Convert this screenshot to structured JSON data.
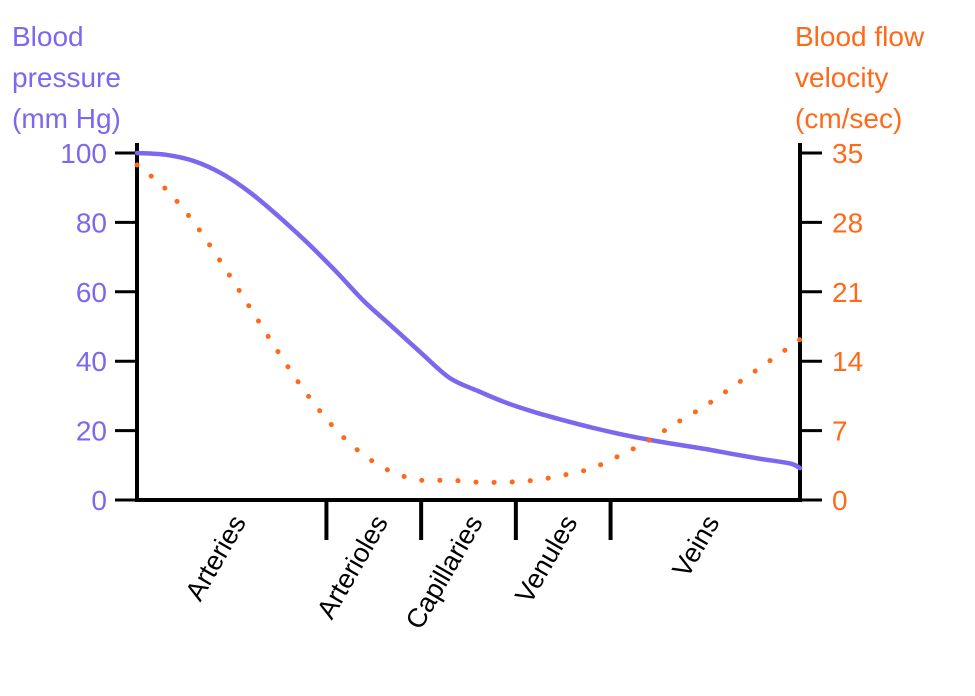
{
  "colors": {
    "pressure": "#7b68ee",
    "velocity": "#ff6a1a",
    "axis": "#000000"
  },
  "left_axis_label": [
    "Blood",
    "pressure",
    "(mm Hg)"
  ],
  "right_axis_label": [
    "Blood flow",
    "velocity",
    "(cm/sec)"
  ],
  "chart_data": {
    "type": "line",
    "categories": [
      "Arteries",
      "Arterioles",
      "Capillaries",
      "Venules",
      "Veins"
    ],
    "category_boundaries": [
      2.0,
      3.0,
      4.0,
      5.0
    ],
    "x_range": [
      0,
      7
    ],
    "left_axis": {
      "ticks": [
        0,
        20,
        40,
        60,
        80,
        100
      ],
      "ylim": [
        0,
        100
      ]
    },
    "right_axis": {
      "ticks": [
        0,
        7,
        14,
        21,
        28,
        35
      ],
      "ylim": [
        0,
        35
      ]
    },
    "grid": false,
    "series": [
      {
        "name": "Blood pressure (mm Hg)",
        "axis": "left",
        "style": "solid",
        "x": [
          0,
          0.3,
          0.6,
          0.9,
          1.2,
          1.5,
          1.8,
          2.1,
          2.4,
          2.7,
          3.0,
          3.3,
          3.6,
          3.9,
          4.2,
          4.5,
          4.8,
          5.1,
          5.4,
          5.7,
          6.0,
          6.3,
          6.6,
          6.9,
          7.0
        ],
        "values": [
          100,
          99.5,
          97.7,
          94,
          88.5,
          81.6,
          74.1,
          65.9,
          57.2,
          49.8,
          42.4,
          35.2,
          31.4,
          28,
          25.3,
          23,
          20.9,
          19,
          17.4,
          16,
          14.7,
          13.2,
          11.8,
          10.5,
          9.2
        ]
      },
      {
        "name": "Blood flow velocity (cm/sec)",
        "axis": "right",
        "style": "dotted",
        "x": [
          0,
          0.3,
          0.6,
          0.9,
          1.2,
          1.5,
          1.8,
          2.1,
          2.4,
          2.7,
          3.0,
          3.3,
          3.6,
          3.9,
          4.2,
          4.5,
          4.8,
          5.1,
          5.4,
          5.7,
          6.0,
          6.3,
          6.6,
          6.9,
          7.0
        ],
        "values": [
          33.8,
          31.4,
          28,
          23.8,
          19.3,
          14.8,
          10.6,
          7.1,
          4.5,
          2.8,
          2,
          2,
          1.8,
          1.8,
          2,
          2.5,
          3.2,
          4.5,
          6,
          7.8,
          9.5,
          11.5,
          13.5,
          15.5,
          16.2
        ]
      }
    ]
  }
}
